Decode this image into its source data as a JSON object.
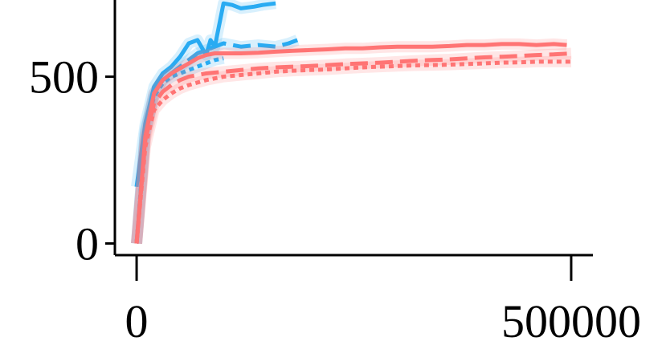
{
  "chart_data": {
    "type": "line",
    "title": "",
    "xlabel": "",
    "ylabel": "",
    "xlim": [
      -25000,
      525000
    ],
    "ylim": [
      -35,
      730
    ],
    "x_ticks": [
      0,
      500000
    ],
    "x_tick_labels": [
      "0",
      "500000"
    ],
    "y_ticks": [
      0,
      500
    ],
    "y_tick_labels": [
      "0",
      "500"
    ],
    "grid": false,
    "legend": "none",
    "series": [
      {
        "color": "#29abf2",
        "style": "solid",
        "x": [
          0,
          10000,
          20000,
          30000,
          40000,
          50000,
          60000,
          70000,
          80000,
          85000,
          90000,
          100000,
          110000,
          120000,
          135000,
          145000,
          160000
        ],
        "y": [
          170,
          360,
          470,
          510,
          530,
          560,
          600,
          610,
          565,
          610,
          590,
          720,
          715,
          705,
          710,
          715,
          720
        ]
      },
      {
        "color": "#29abf2",
        "style": "dashed",
        "x": [
          0,
          10000,
          20000,
          30000,
          40000,
          50000,
          60000,
          70000,
          80000,
          90000,
          100000,
          110000,
          120000,
          140000,
          160000,
          175000,
          185000
        ],
        "y": [
          0,
          330,
          450,
          490,
          510,
          530,
          550,
          570,
          580,
          590,
          600,
          595,
          590,
          595,
          590,
          600,
          610
        ]
      },
      {
        "color": "#29abf2",
        "style": "dotted",
        "x": [
          0,
          10000,
          20000,
          30000,
          40000,
          50000,
          60000,
          70000,
          80000,
          90000,
          100000
        ],
        "y": [
          0,
          340,
          440,
          480,
          500,
          510,
          520,
          530,
          540,
          550,
          555
        ]
      },
      {
        "color": "#ff7474",
        "style": "solid",
        "x": [
          0,
          10000,
          20000,
          30000,
          40000,
          50000,
          60000,
          70000,
          80000,
          90000,
          100000,
          120000,
          140000,
          160000,
          180000,
          200000,
          220000,
          240000,
          260000,
          280000,
          300000,
          320000,
          340000,
          360000,
          380000,
          400000,
          420000,
          440000,
          460000,
          480000,
          495000
        ],
        "y": [
          0,
          320,
          450,
          490,
          510,
          525,
          540,
          555,
          565,
          570,
          570,
          570,
          572,
          575,
          578,
          580,
          582,
          585,
          585,
          588,
          590,
          590,
          590,
          592,
          595,
          595,
          598,
          598,
          595,
          598,
          595
        ]
      },
      {
        "color": "#ff7474",
        "style": "dashed",
        "x": [
          0,
          10000,
          20000,
          30000,
          40000,
          50000,
          60000,
          80000,
          100000,
          120000,
          140000,
          160000,
          180000,
          200000,
          220000,
          240000,
          260000,
          280000,
          300000,
          320000,
          340000,
          360000,
          380000,
          400000,
          420000,
          440000,
          460000,
          480000,
          500000
        ],
        "y": [
          0,
          310,
          420,
          455,
          475,
          490,
          500,
          510,
          515,
          520,
          525,
          528,
          530,
          532,
          535,
          538,
          540,
          542,
          545,
          548,
          550,
          552,
          555,
          558,
          560,
          562,
          565,
          567,
          570
        ]
      },
      {
        "color": "#ff7474",
        "style": "dotted",
        "x": [
          0,
          10000,
          20000,
          30000,
          40000,
          50000,
          60000,
          80000,
          100000,
          120000,
          140000,
          160000,
          180000,
          200000,
          220000,
          240000,
          260000,
          280000,
          300000,
          320000,
          340000,
          360000,
          380000,
          400000,
          420000,
          440000,
          460000,
          480000,
          500000
        ],
        "y": [
          0,
          290,
          400,
          430,
          450,
          465,
          475,
          490,
          500,
          505,
          510,
          515,
          518,
          520,
          522,
          525,
          528,
          530,
          532,
          534,
          535,
          536,
          538,
          540,
          542,
          543,
          545,
          545,
          545
        ]
      }
    ]
  }
}
